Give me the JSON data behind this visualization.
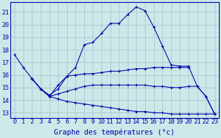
{
  "xlabel": "Graphe des températures (°c)",
  "bg_color": "#cce8e8",
  "line_color": "#0000aa",
  "grid_color": "#aabbcc",
  "x_ticks": [
    0,
    1,
    2,
    3,
    4,
    5,
    6,
    7,
    8,
    9,
    10,
    11,
    12,
    13,
    14,
    15,
    16,
    17,
    18,
    19,
    20,
    21,
    22,
    23
  ],
  "y_ticks": [
    13,
    14,
    15,
    16,
    17,
    18,
    19,
    20,
    21
  ],
  "xlim": [
    -0.5,
    23.5
  ],
  "ylim": [
    12.6,
    21.8
  ],
  "lines": [
    {
      "x": [
        0,
        1,
        2,
        3,
        4,
        5,
        6,
        7,
        8,
        9,
        10,
        11,
        12,
        13,
        14,
        15,
        16,
        17,
        18,
        19,
        20,
        21,
        22,
        23
      ],
      "y": [
        17.6,
        16.6,
        15.7,
        14.9,
        14.4,
        14.9,
        15.9,
        16.6,
        18.4,
        18.6,
        19.3,
        20.1,
        20.1,
        20.8,
        21.4,
        21.1,
        19.8,
        18.3,
        16.8,
        16.7,
        16.7,
        15.1,
        14.3,
        12.9
      ]
    },
    {
      "x": [
        2,
        3,
        4,
        5,
        6,
        7,
        8,
        9,
        10,
        11,
        12,
        13,
        14,
        15,
        16,
        17,
        18,
        19,
        20
      ],
      "y": [
        15.7,
        14.9,
        14.3,
        15.2,
        15.9,
        16.0,
        16.1,
        16.1,
        16.2,
        16.3,
        16.3,
        16.4,
        16.5,
        16.5,
        16.6,
        16.6,
        16.6,
        16.6,
        16.6
      ]
    },
    {
      "x": [
        2,
        3,
        4,
        5,
        6,
        7,
        8,
        9,
        10,
        11,
        12,
        13,
        14,
        15,
        16,
        17,
        18,
        19,
        20,
        21,
        22,
        23
      ],
      "y": [
        15.7,
        14.9,
        14.3,
        14.5,
        14.7,
        14.9,
        15.1,
        15.2,
        15.2,
        15.2,
        15.2,
        15.2,
        15.2,
        15.2,
        15.1,
        15.1,
        15.0,
        15.0,
        15.1,
        15.1,
        14.3,
        12.9
      ]
    },
    {
      "x": [
        2,
        3,
        4,
        5,
        6,
        7,
        8,
        9,
        10,
        11,
        12,
        13,
        14,
        15,
        16,
        17,
        18,
        19,
        20,
        21,
        22,
        23
      ],
      "y": [
        15.7,
        14.9,
        14.3,
        14.1,
        13.9,
        13.8,
        13.7,
        13.6,
        13.5,
        13.4,
        13.3,
        13.2,
        13.1,
        13.1,
        13.0,
        13.0,
        12.9,
        12.9,
        12.9,
        12.9,
        12.9,
        12.9
      ]
    }
  ],
  "tick_fontsize": 6.5,
  "label_fontsize": 7.5
}
